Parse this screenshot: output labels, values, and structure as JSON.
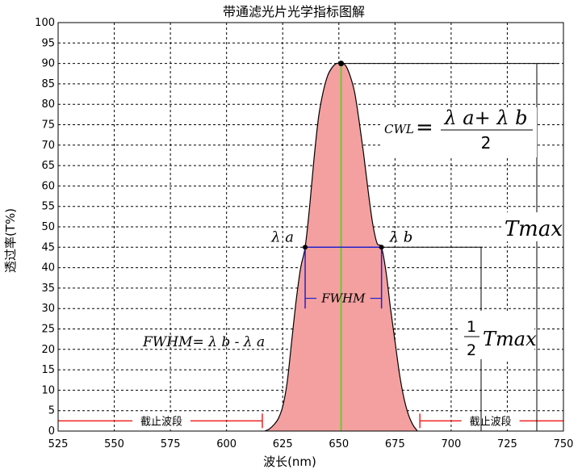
{
  "chart_data": {
    "type": "area",
    "title": "带通滤光片光学指标图解",
    "xlabel": "波长(nm)",
    "ylabel": "透过率(T%)",
    "xlim": [
      525,
      750
    ],
    "ylim": [
      0,
      100
    ],
    "xticks": [
      525,
      550,
      575,
      600,
      625,
      650,
      675,
      700,
      725,
      750
    ],
    "yticks": [
      0,
      5,
      10,
      15,
      20,
      25,
      30,
      35,
      40,
      45,
      50,
      55,
      60,
      65,
      70,
      75,
      80,
      85,
      90,
      95,
      100
    ],
    "grid": true,
    "fill_color": "#f4a0a0",
    "curve_color": "#000000",
    "center_line_color": "#66cc33",
    "cutoff_color": "#ee2222",
    "fwhm_color": "#2222cc",
    "series": [
      {
        "x": [
          617,
          619,
          621,
          623,
          625,
          627,
          629,
          631,
          633,
          635,
          637,
          639,
          641,
          643,
          645,
          647,
          649,
          651,
          653,
          655,
          657,
          659,
          661,
          663,
          665,
          667,
          669,
          671,
          673,
          675,
          677,
          679,
          681,
          683,
          685
        ],
        "y": [
          0,
          0.5,
          1.5,
          3,
          6,
          12,
          22,
          32,
          40,
          45,
          55,
          67,
          77,
          83,
          87,
          89,
          90,
          90,
          89.5,
          87,
          83,
          76,
          68,
          59,
          51,
          46,
          45,
          39,
          30,
          22,
          14,
          8,
          4,
          1.5,
          0
        ]
      }
    ],
    "peak": {
      "x": 651,
      "y": 90
    },
    "lambda_a": {
      "x": 635,
      "y": 45,
      "label": "λ a"
    },
    "lambda_b": {
      "x": 669,
      "y": 45,
      "label": "λ b"
    },
    "annotations": {
      "cwl_label": "CWL",
      "cwl_eq": "=",
      "cwl_numerator": "λ a+ λ b",
      "cwl_denominator": "2",
      "tmax": "Tmax",
      "half_num": "1",
      "half_den": "2",
      "half_tmax": "Tmax",
      "fwhm_inner": "FWHM",
      "fwhm_formula": "FWHM= λ b - λ a",
      "cutoff_left": "截止波段",
      "cutoff_right": "截止波段"
    }
  }
}
